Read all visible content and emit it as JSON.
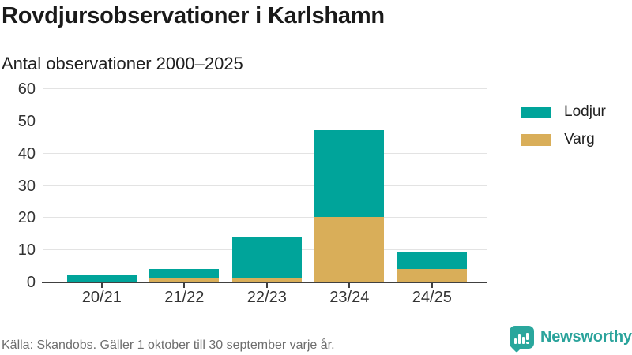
{
  "chart_data": {
    "type": "bar",
    "stacked": true,
    "title": "Rovdjursobservationer i Karlshamn",
    "subtitle": "Antal observationer 2000–2025",
    "categories": [
      "20/21",
      "21/22",
      "22/23",
      "23/24",
      "24/25"
    ],
    "series": [
      {
        "name": "Lodjur",
        "color": "#00a49a",
        "stack_position": "top",
        "values": [
          2,
          3,
          13,
          27,
          5
        ]
      },
      {
        "name": "Varg",
        "color": "#d9ae59",
        "stack_position": "bottom",
        "values": [
          0,
          1,
          1,
          20,
          4
        ]
      }
    ],
    "stacked_totals": [
      2,
      4,
      14,
      47,
      9
    ],
    "xlabel": "",
    "ylabel": "",
    "ylim": [
      0,
      60
    ],
    "yticks": [
      0,
      10,
      20,
      30,
      40,
      50,
      60
    ],
    "grid": true,
    "legend_position": "right"
  },
  "footer": {
    "source": "Källa: Skandobs. Gäller 1 oktober till 30 september varje år.",
    "brand": "Newsworthy",
    "brand_color": "#2aa39b",
    "logo_icon": "newsworthy-bubble-chart-icon"
  }
}
